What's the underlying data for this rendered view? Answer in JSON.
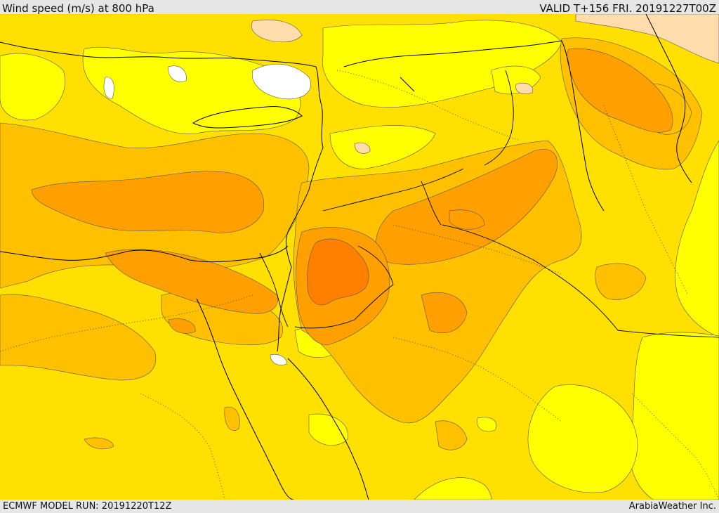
{
  "header": {
    "title": "Wind speed (m/s) at 800 hPa",
    "valid": "VALID T+156 FRI. 20191227T00Z"
  },
  "footer": {
    "model_run": "ECMWF MODEL RUN: 20191220T12Z",
    "credit": "ArabiaWeather Inc."
  },
  "colors": {
    "low": "#ffff00",
    "level2": "#ffe000",
    "level3": "#ffc000",
    "level4": "#ffa000",
    "level5": "#ff8000",
    "calm_light": "#ffffff",
    "tan": "#fedcac",
    "borders": "#000000"
  }
}
